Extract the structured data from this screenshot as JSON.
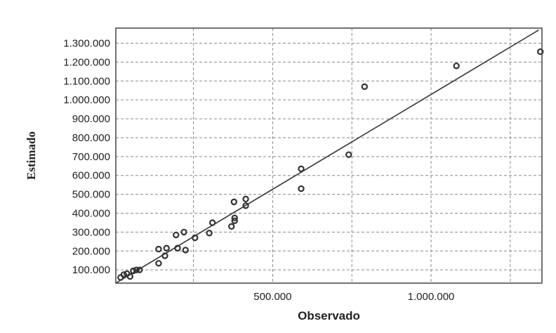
{
  "chart_data": {
    "type": "scatter",
    "title": "",
    "xlabel": "Observado",
    "ylabel": "Estimado",
    "xlim": [
      5000,
      1350000
    ],
    "ylim": [
      30000,
      1380000
    ],
    "x_ticks": [
      {
        "value": 500000,
        "label": "500.000"
      },
      {
        "value": 1000000,
        "label": "1.000.000"
      }
    ],
    "y_ticks": [
      {
        "value": 100000,
        "label": "100.000"
      },
      {
        "value": 200000,
        "label": "200.000"
      },
      {
        "value": 300000,
        "label": "300.000"
      },
      {
        "value": 400000,
        "label": "400.000"
      },
      {
        "value": 500000,
        "label": "500.000"
      },
      {
        "value": 600000,
        "label": "600.000"
      },
      {
        "value": 700000,
        "label": "700.000"
      },
      {
        "value": 800000,
        "label": "800.000"
      },
      {
        "value": 900000,
        "label": "900.000"
      },
      {
        "value": 1000000,
        "label": "1.000.000"
      },
      {
        "value": 1100000,
        "label": "1.100.000"
      },
      {
        "value": 1200000,
        "label": "1.200.000"
      },
      {
        "value": 1300000,
        "label": "1.300.000"
      }
    ],
    "x_gridlines": [
      250000,
      500000,
      750000,
      1000000,
      1250000
    ],
    "y_gridlines": [
      100000,
      200000,
      300000,
      400000,
      500000,
      600000,
      700000,
      800000,
      900000,
      1000000,
      1100000,
      1200000,
      1300000
    ],
    "grid": true,
    "points": [
      {
        "x": 20000,
        "y": 60000
      },
      {
        "x": 30000,
        "y": 75000
      },
      {
        "x": 40000,
        "y": 80000
      },
      {
        "x": 50000,
        "y": 65000
      },
      {
        "x": 60000,
        "y": 95000
      },
      {
        "x": 70000,
        "y": 100000
      },
      {
        "x": 80000,
        "y": 100000
      },
      {
        "x": 140000,
        "y": 210000
      },
      {
        "x": 140000,
        "y": 135000
      },
      {
        "x": 160000,
        "y": 175000
      },
      {
        "x": 165000,
        "y": 215000
      },
      {
        "x": 195000,
        "y": 285000
      },
      {
        "x": 200000,
        "y": 215000
      },
      {
        "x": 220000,
        "y": 300000
      },
      {
        "x": 225000,
        "y": 205000
      },
      {
        "x": 255000,
        "y": 270000
      },
      {
        "x": 300000,
        "y": 295000
      },
      {
        "x": 310000,
        "y": 350000
      },
      {
        "x": 370000,
        "y": 330000
      },
      {
        "x": 378000,
        "y": 460000
      },
      {
        "x": 380000,
        "y": 375000
      },
      {
        "x": 380000,
        "y": 360000
      },
      {
        "x": 415000,
        "y": 475000
      },
      {
        "x": 415000,
        "y": 440000
      },
      {
        "x": 590000,
        "y": 635000
      },
      {
        "x": 590000,
        "y": 530000
      },
      {
        "x": 740000,
        "y": 710000
      },
      {
        "x": 790000,
        "y": 1070000
      },
      {
        "x": 1080000,
        "y": 1180000
      },
      {
        "x": 1345000,
        "y": 1255000
      }
    ],
    "fit_line": {
      "x": [
        5000,
        1340000
      ],
      "y": [
        30000,
        1370000
      ]
    }
  }
}
